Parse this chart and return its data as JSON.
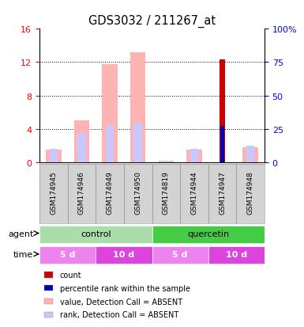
{
  "title": "GDS3032 / 211267_at",
  "samples": [
    "GSM174945",
    "GSM174946",
    "GSM174949",
    "GSM174950",
    "GSM174819",
    "GSM174944",
    "GSM174947",
    "GSM174948"
  ],
  "ylim_left": [
    0,
    16
  ],
  "ylim_right": [
    0,
    100
  ],
  "yticks_left": [
    0,
    4,
    8,
    12,
    16
  ],
  "yticks_right": [
    0,
    25,
    50,
    75,
    100
  ],
  "yticklabels_left": [
    "0",
    "4",
    "8",
    "12",
    "16"
  ],
  "yticklabels_right": [
    "0",
    "25",
    "50",
    "75",
    "100%"
  ],
  "bar_value_absent": [
    1.5,
    5.0,
    11.8,
    13.2,
    0.15,
    1.5,
    0.0,
    1.8
  ],
  "bar_rank_absent_pct": [
    10.0,
    21.9,
    28.1,
    29.4,
    0.9,
    10.0,
    0.0,
    12.5
  ],
  "bar_count": [
    0.0,
    0.0,
    0.0,
    0.0,
    0.0,
    0.0,
    12.3,
    0.0
  ],
  "bar_rank_present_pct": [
    0.0,
    0.0,
    0.0,
    0.0,
    0.0,
    0.0,
    27.5,
    0.0
  ],
  "color_count": "#cc0000",
  "color_rank_present": "#0000bb",
  "color_value_absent": "#ffb3b3",
  "color_rank_absent": "#c8c8ff",
  "agent_groups": [
    {
      "label": "control",
      "start": 0,
      "end": 4,
      "color": "#aaddaa"
    },
    {
      "label": "quercetin",
      "start": 4,
      "end": 8,
      "color": "#44cc44"
    }
  ],
  "time_groups": [
    {
      "label": "5 d",
      "start": 0,
      "end": 2,
      "color": "#ee82ee"
    },
    {
      "label": "10 d",
      "start": 2,
      "end": 4,
      "color": "#dd44dd"
    },
    {
      "label": "5 d",
      "start": 4,
      "end": 6,
      "color": "#ee82ee"
    },
    {
      "label": "10 d",
      "start": 6,
      "end": 8,
      "color": "#dd44dd"
    }
  ],
  "legend_items": [
    {
      "color": "#cc0000",
      "label": "count"
    },
    {
      "color": "#0000bb",
      "label": "percentile rank within the sample"
    },
    {
      "color": "#ffb3b3",
      "label": "value, Detection Call = ABSENT"
    },
    {
      "color": "#c8c8ff",
      "label": "rank, Detection Call = ABSENT"
    }
  ],
  "sample_box_color": "#d3d3d3",
  "sample_box_border": "#999999"
}
